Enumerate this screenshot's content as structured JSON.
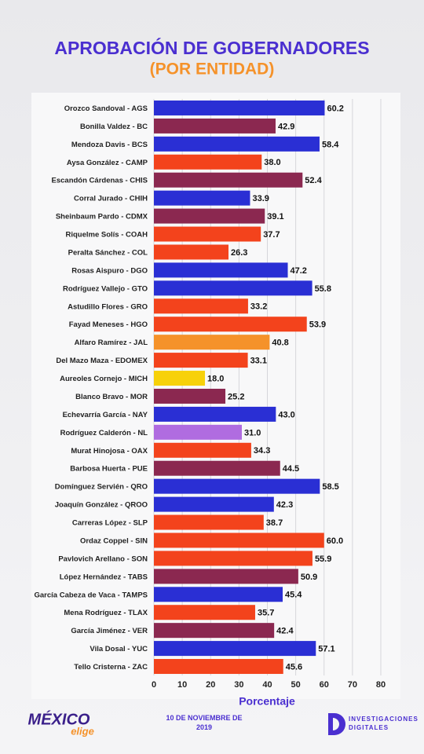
{
  "chart_data": {
    "type": "bar",
    "orientation": "horizontal",
    "title": "APROBACIÓN DE GOBERNADORES",
    "subtitle": "(POR ENTIDAD)",
    "xlabel": "Porcentaje",
    "categories": [
      "Orozco Sandoval - AGS",
      "Bonilla Valdez - BC",
      "Mendoza Davis - BCS",
      "Aysa González - CAMP",
      "Escandón Cárdenas - CHIS",
      "Corral Jurado - CHIH",
      "Sheinbaum Pardo - CDMX",
      "Riquelme Solís - COAH",
      "Peralta Sánchez - COL",
      "Rosas Aispuro - DGO",
      "Rodríguez Vallejo - GTO",
      "Astudillo Flores - GRO",
      "Fayad Meneses - HGO",
      "Alfaro Ramírez - JAL",
      "Del Mazo Maza - EDOMEX",
      "Aureoles Cornejo - MICH",
      "Blanco Bravo - MOR",
      "Echevarría García - NAY",
      "Rodríguez Calderón - NL",
      "Murat Hinojosa - OAX",
      "Barbosa Huerta - PUE",
      "Domínguez Servién - QRO",
      "Joaquín González - QROO",
      "Carreras López - SLP",
      "Ordaz Coppel - SIN",
      "Pavlovich Arellano - SON",
      "López Hernández - TABS",
      "García Cabeza de Vaca - TAMPS",
      "Mena Rodríguez - TLAX",
      "García Jiménez - VER",
      "Vila Dosal - YUC",
      "Tello Cristerna - ZAC"
    ],
    "values": [
      60.2,
      42.9,
      58.4,
      38.0,
      52.4,
      33.9,
      39.1,
      37.7,
      26.3,
      47.2,
      55.8,
      33.2,
      53.9,
      40.8,
      33.1,
      18.0,
      25.2,
      43.0,
      31.0,
      34.3,
      44.5,
      58.5,
      42.3,
      38.7,
      60.0,
      55.9,
      50.9,
      45.4,
      35.7,
      42.4,
      57.1,
      45.6
    ],
    "value_labels": [
      "60.2",
      "42.9",
      "58.4",
      "38.0",
      "52.4",
      "33.9",
      "39.1",
      "37.7",
      "26.3",
      "47.2",
      "55.8",
      "33.2",
      "53.9",
      "40.8",
      "33.1",
      "18.0",
      "25.2",
      "43.0",
      "31.0",
      "34.3",
      "44.5",
      "58.5",
      "42.3",
      "38.7",
      "60.0",
      "55.9",
      "50.9",
      "45.4",
      "35.7",
      "42.4",
      "57.1",
      "45.6"
    ],
    "colors": [
      "#2a2fd4",
      "#8b2850",
      "#2a2fd4",
      "#f3431c",
      "#8b2850",
      "#2a2fd4",
      "#8b2850",
      "#f3431c",
      "#f3431c",
      "#2a2fd4",
      "#2a2fd4",
      "#f3431c",
      "#f3431c",
      "#f5922a",
      "#f3431c",
      "#f7d10a",
      "#8b2850",
      "#2a2fd4",
      "#b06ce0",
      "#f3431c",
      "#8b2850",
      "#2a2fd4",
      "#2a2fd4",
      "#f3431c",
      "#f3431c",
      "#f3431c",
      "#8b2850",
      "#2a2fd4",
      "#f3431c",
      "#8b2850",
      "#2a2fd4",
      "#f3431c"
    ],
    "xlim": [
      0,
      80
    ],
    "xticks": [
      0,
      10,
      20,
      30,
      40,
      50,
      60,
      70,
      80
    ],
    "grid": true
  },
  "footer": {
    "logo": "MÉXICO",
    "logo_tag": "elige",
    "date": "10 DE NOVIEMBRE DE 2019",
    "brand": "INVESTIGACIONES DIGITALES"
  }
}
